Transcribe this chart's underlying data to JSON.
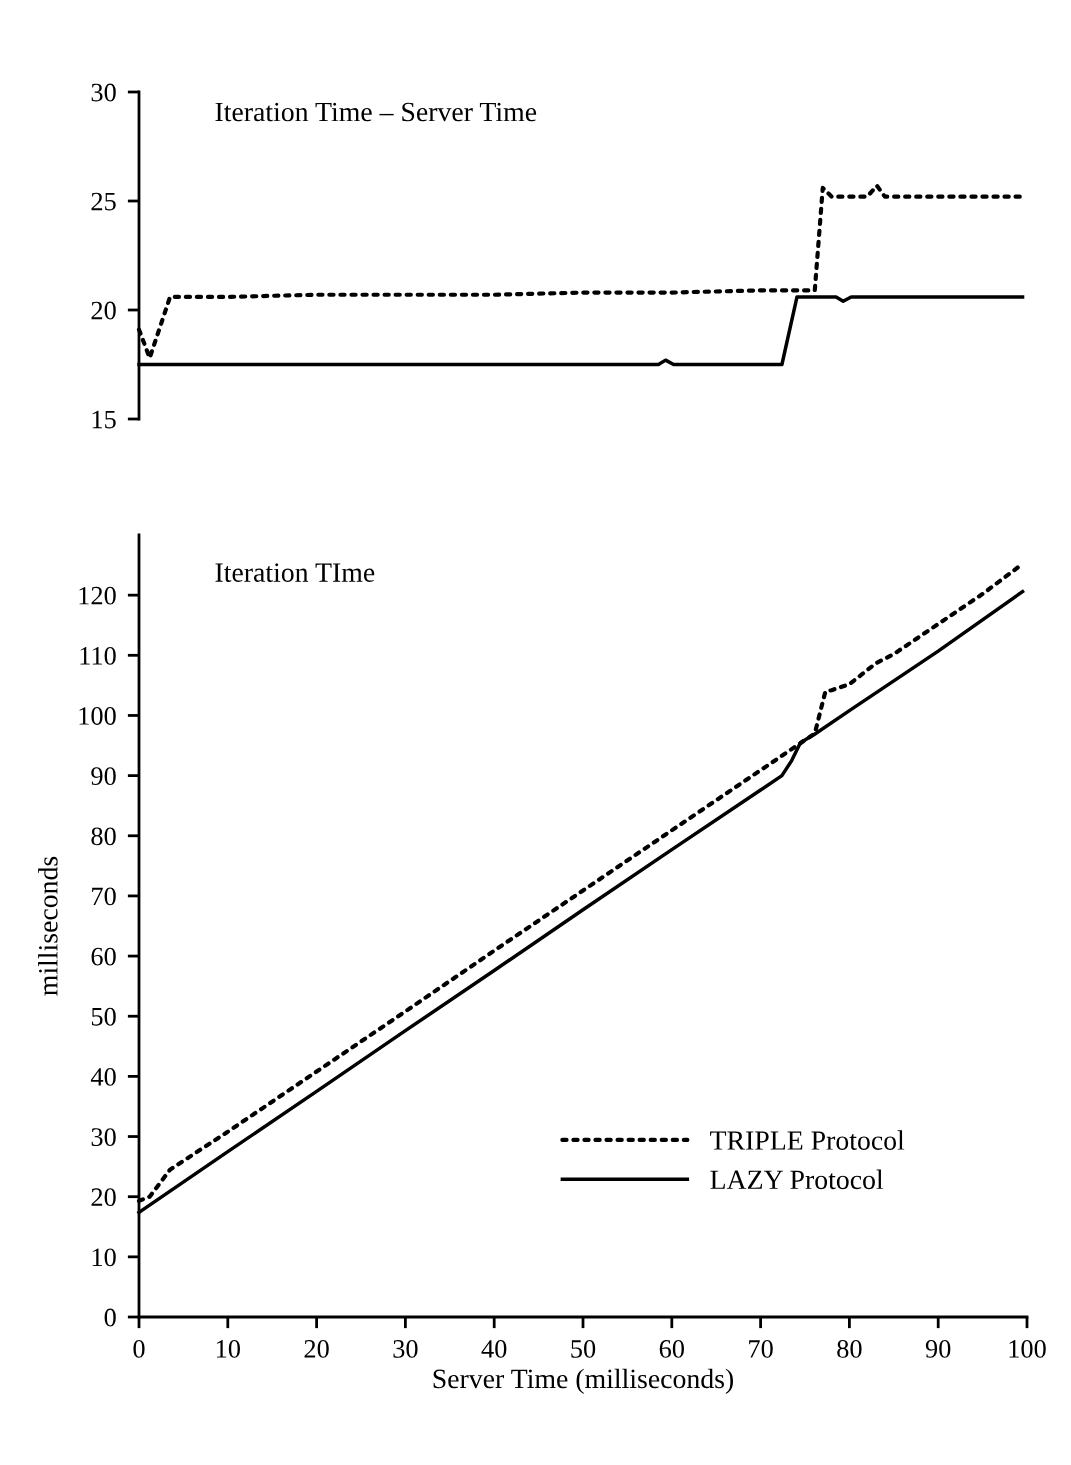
{
  "chart_data": [
    {
      "type": "line",
      "title": "Iteration Time – Server Time",
      "xlim": [
        0,
        100
      ],
      "ylim": [
        15,
        30
      ],
      "yticks": [
        15,
        20,
        25,
        30
      ],
      "tick_labels": "y",
      "grid": false,
      "legend": false,
      "marker": "none",
      "series": [
        {
          "color": "#000000",
          "line_style": "dotted",
          "x": [
            0,
            1.2,
            3.5,
            10,
            20,
            30,
            40,
            50,
            60,
            70,
            76.1,
            77,
            78,
            82,
            83.1,
            84,
            90,
            99.5
          ],
          "values": [
            19.1,
            17.8,
            20.6,
            20.6,
            20.7,
            20.7,
            20.7,
            20.8,
            20.8,
            20.9,
            20.9,
            25.6,
            25.2,
            25.2,
            25.7,
            25.2,
            25.2,
            25.2
          ]
        },
        {
          "color": "#000000",
          "line_style": "solid",
          "x": [
            0,
            10,
            20,
            30,
            40,
            50,
            58.5,
            59.3,
            60.2,
            72.4,
            74.1,
            78.5,
            79.3,
            80.2,
            90,
            99.5
          ],
          "values": [
            17.5,
            17.5,
            17.5,
            17.5,
            17.5,
            17.5,
            17.5,
            17.7,
            17.5,
            17.5,
            20.6,
            20.6,
            20.4,
            20.6,
            20.6,
            20.6
          ]
        }
      ]
    },
    {
      "type": "line",
      "title": "Iteration TIme",
      "xlabel": "Server Time (milliseconds)",
      "ylabel": "milliseconds",
      "xlim": [
        0,
        100
      ],
      "xticks": [
        0,
        10,
        20,
        30,
        40,
        50,
        60,
        70,
        80,
        90,
        100
      ],
      "ylim": [
        0,
        130
      ],
      "yticks": [
        0,
        10,
        20,
        30,
        40,
        50,
        60,
        70,
        80,
        90,
        100,
        110,
        120
      ],
      "grid": false,
      "legend": "lower right",
      "marker": "none",
      "series": [
        {
          "name": "TRIPLE Protocol",
          "color": "#000000",
          "line_style": "dotted",
          "x": [
            0,
            1.2,
            3.5,
            10,
            20,
            30,
            40,
            50,
            60,
            70,
            76.1,
            77.3,
            78,
            80,
            83,
            85,
            90,
            95,
            99.5
          ],
          "values": [
            19.3,
            20,
            24.5,
            30.8,
            40.8,
            50.8,
            60.9,
            70.9,
            80.9,
            90.9,
            97,
            104,
            104.2,
            105.2,
            108.7,
            110.2,
            115.2,
            120.2,
            125.2
          ]
        },
        {
          "name": "LAZY Protocol",
          "color": "#000000",
          "line_style": "solid",
          "x": [
            0,
            10,
            20,
            30,
            40,
            50,
            60,
            70,
            72.4,
            73.5,
            74.5,
            76,
            80,
            90,
            99.5
          ],
          "values": [
            17.4,
            27.5,
            37.5,
            47.6,
            57.6,
            67.7,
            77.7,
            87.6,
            90.0,
            92.5,
            95.5,
            96.8,
            100.8,
            110.7,
            120.6
          ]
        }
      ]
    }
  ]
}
